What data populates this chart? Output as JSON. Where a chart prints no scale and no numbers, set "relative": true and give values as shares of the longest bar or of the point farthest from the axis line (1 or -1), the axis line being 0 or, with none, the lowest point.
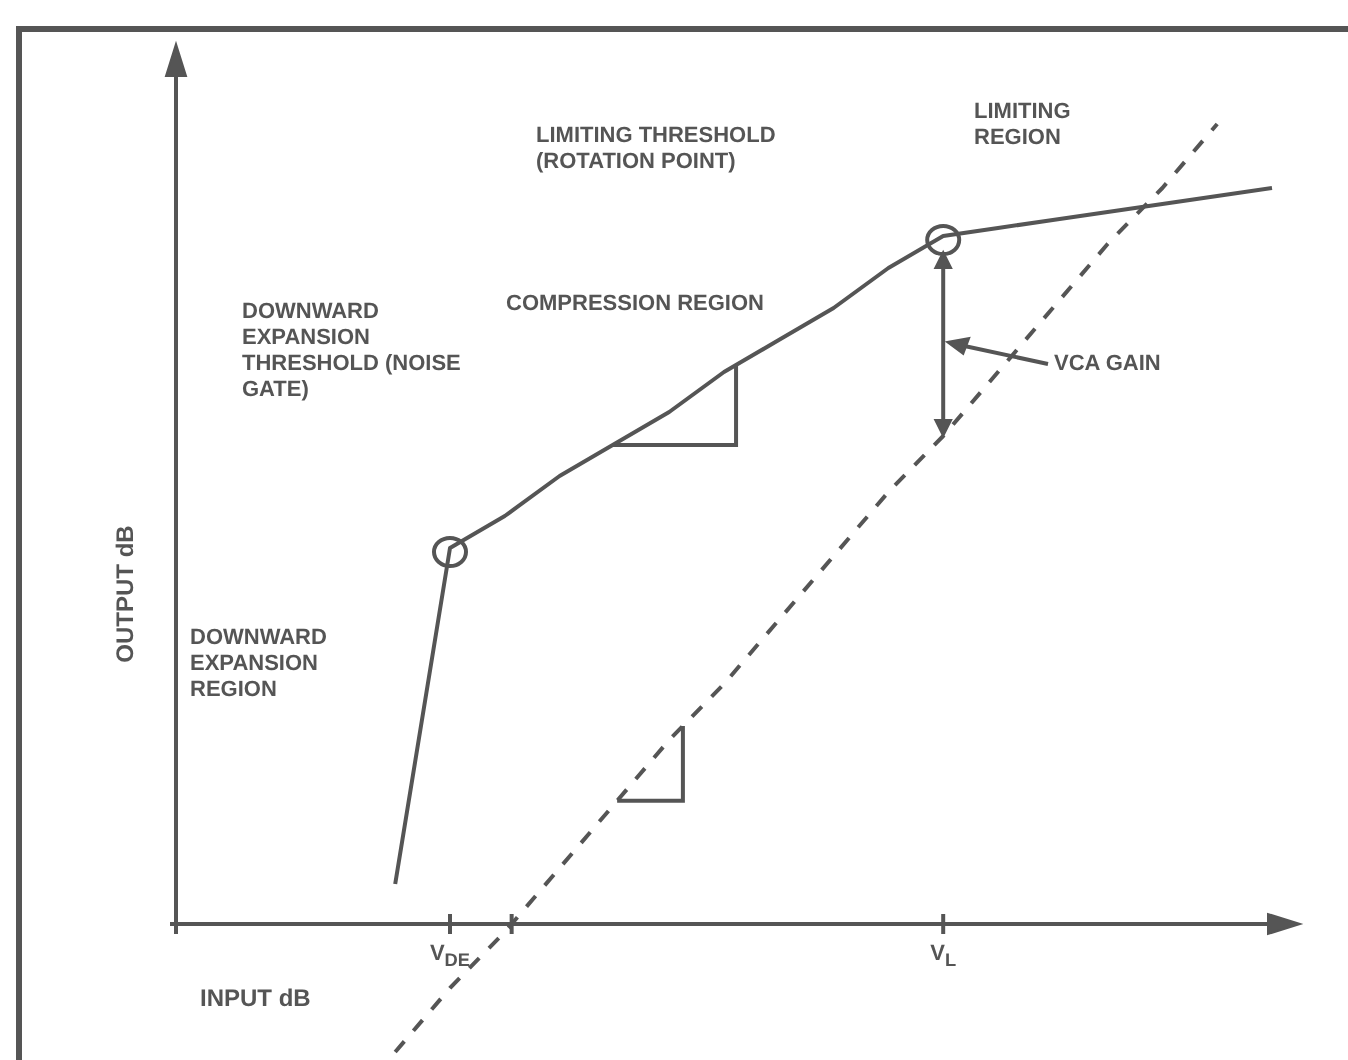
{
  "chart_data": {
    "type": "line",
    "relative": true,
    "xlabel": "INPUT dB",
    "ylabel": "OUTPUT dB",
    "legend": false,
    "marker": "none",
    "categories": [
      null,
      null,
      null,
      null,
      null,
      "V$_{DE}$",
      null,
      null,
      null,
      null,
      null,
      null,
      null,
      null,
      "V$_{L}$",
      null,
      null,
      null,
      null,
      null,
      null
    ],
    "series": [
      {
        "color": "#555555",
        "line_style": "solid",
        "values": [
          null,
          null,
          null,
          null,
          0.05,
          0.47,
          0.51,
          0.56,
          0.6,
          0.64,
          0.69,
          0.73,
          0.77,
          0.82,
          0.86,
          0.87,
          0.88,
          0.89,
          0.9,
          0.91,
          0.92
        ]
      },
      {
        "color": "#555555",
        "line_style": "dashed",
        "values": [
          null,
          null,
          null,
          null,
          -0.16,
          -0.08,
          -0.01,
          0.07,
          0.15,
          0.23,
          0.3,
          0.38,
          0.46,
          0.54,
          0.61,
          0.69,
          0.77,
          0.85,
          0.92,
          1.0,
          null
        ]
      }
    ],
    "annotations": [
      "LIMITING THRESHOLD (ROTATION POINT)",
      "LIMITING REGION",
      "COMPRESSION REGION",
      "DOWNWARD EXPANSION THRESHOLD (NOISE GATE)",
      "DOWNWARD EXPANSION REGION",
      "VCA GAIN"
    ]
  }
}
